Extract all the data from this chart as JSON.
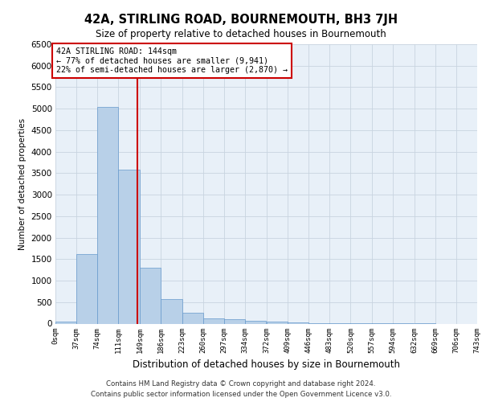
{
  "title": "42A, STIRLING ROAD, BOURNEMOUTH, BH3 7JH",
  "subtitle": "Size of property relative to detached houses in Bournemouth",
  "xlabel": "Distribution of detached houses by size in Bournemouth",
  "ylabel": "Number of detached properties",
  "footer_line1": "Contains HM Land Registry data © Crown copyright and database right 2024.",
  "footer_line2": "Contains public sector information licensed under the Open Government Licence v3.0.",
  "annotation_title": "42A STIRLING ROAD: 144sqm",
  "annotation_line1": "← 77% of detached houses are smaller (9,941)",
  "annotation_line2": "22% of semi-detached houses are larger (2,870) →",
  "property_size_sqm": 144,
  "bar_color": "#b8d0e8",
  "bar_edge_color": "#6699cc",
  "vline_color": "#cc0000",
  "annotation_box_color": "#cc0000",
  "background_color": "#ffffff",
  "grid_color": "#c8d4e0",
  "plot_bg_color": "#e8f0f8",
  "bins": [
    0,
    37,
    74,
    111,
    149,
    186,
    223,
    260,
    297,
    334,
    372,
    409,
    446,
    483,
    520,
    557,
    594,
    632,
    669,
    706,
    743
  ],
  "bin_labels": [
    "0sqm",
    "37sqm",
    "74sqm",
    "111sqm",
    "149sqm",
    "186sqm",
    "223sqm",
    "260sqm",
    "297sqm",
    "334sqm",
    "372sqm",
    "409sqm",
    "446sqm",
    "483sqm",
    "520sqm",
    "557sqm",
    "594sqm",
    "632sqm",
    "669sqm",
    "706sqm",
    "743sqm"
  ],
  "counts": [
    50,
    1620,
    5050,
    3580,
    1300,
    570,
    260,
    130,
    100,
    70,
    50,
    20,
    10,
    5,
    3,
    2,
    1,
    1,
    0,
    0
  ],
  "ylim": [
    0,
    6500
  ],
  "yticks": [
    0,
    500,
    1000,
    1500,
    2000,
    2500,
    3000,
    3500,
    4000,
    4500,
    5000,
    5500,
    6000,
    6500
  ]
}
